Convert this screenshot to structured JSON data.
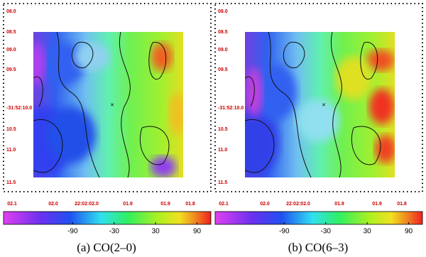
{
  "panels": [
    {
      "y_labels": [
        "08.0",
        "08.5",
        "09.0",
        "09.5",
        "-31:52:10.0",
        "10.5",
        "11.0",
        "11.5"
      ],
      "x_labels": [
        "02.1",
        "02.0",
        "22:02:02.0",
        "01.9",
        "01.9",
        "01.8"
      ],
      "colorbar": {
        "lim": [
          -190,
          110
        ],
        "ticks": [
          -90,
          -30,
          30,
          90
        ]
      },
      "caption": "(a) CO(2–0)"
    },
    {
      "y_labels": [
        "08.0",
        "08.5",
        "09.0",
        "09.5",
        "-31:52:10.0",
        "10.5",
        "11.0",
        "11.5"
      ],
      "x_labels": [
        "02.1",
        "02.0",
        "22:02:02.0",
        "01.9",
        "01.9",
        "01.8"
      ],
      "colorbar": {
        "lim": [
          -190,
          110
        ],
        "ticks": [
          -90,
          -30,
          30,
          90
        ]
      },
      "caption": "(b) CO(6–3)"
    }
  ]
}
